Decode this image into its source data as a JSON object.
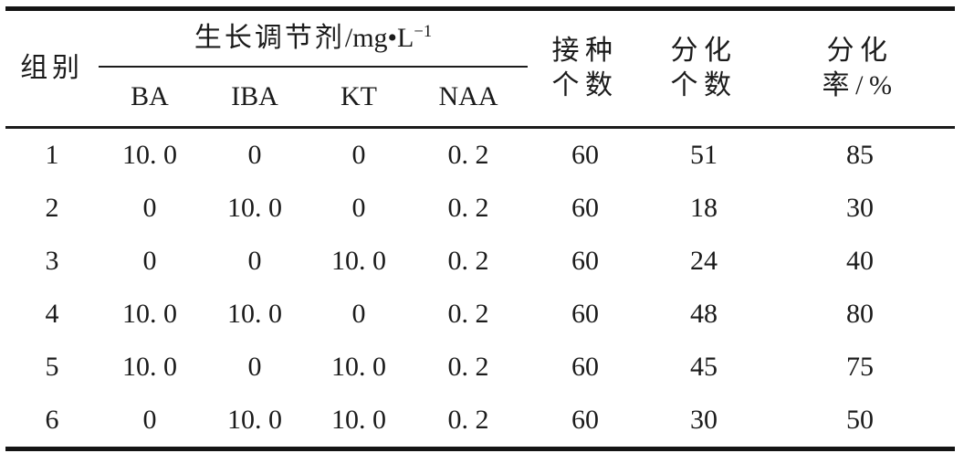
{
  "page": {
    "background": "#ffffff",
    "text_color": "#1b1b1b",
    "rule_color": "#141414"
  },
  "table": {
    "header": {
      "group": "组别",
      "regulator": {
        "title_cjk": "生长调节剂",
        "title_unit": "/mg•L",
        "title_sup": "−1",
        "sub_columns": [
          "BA",
          "IBA",
          "KT",
          "NAA"
        ]
      },
      "stat_columns": [
        {
          "line1": "接种",
          "line2": "个数"
        },
        {
          "line1": "分化",
          "line2": "个数"
        },
        {
          "line1": "分化",
          "line2": "率/%"
        }
      ]
    },
    "rows": [
      [
        "1",
        "10. 0",
        "0",
        "0",
        "0. 2",
        "60",
        "51",
        "85"
      ],
      [
        "2",
        "0",
        "10. 0",
        "0",
        "0. 2",
        "60",
        "18",
        "30"
      ],
      [
        "3",
        "0",
        "0",
        "10. 0",
        "0. 2",
        "60",
        "24",
        "40"
      ],
      [
        "4",
        "10. 0",
        "10. 0",
        "0",
        "0. 2",
        "60",
        "48",
        "80"
      ],
      [
        "5",
        "10. 0",
        "0",
        "10. 0",
        "0. 2",
        "60",
        "45",
        "75"
      ],
      [
        "6",
        "0",
        "10. 0",
        "10. 0",
        "0. 2",
        "60",
        "30",
        "50"
      ]
    ]
  },
  "chart_data": {
    "type": "table",
    "title": "",
    "column_group": {
      "label": "生长调节剂/mg•L⁻¹",
      "spans": [
        "BA",
        "IBA",
        "KT",
        "NAA"
      ]
    },
    "columns": [
      "组别",
      "BA",
      "IBA",
      "KT",
      "NAA",
      "接种个数",
      "分化个数",
      "分化率/%"
    ],
    "rows": [
      [
        1,
        10.0,
        0,
        0,
        0.2,
        60,
        51,
        85
      ],
      [
        2,
        0,
        10.0,
        0,
        0.2,
        60,
        18,
        30
      ],
      [
        3,
        0,
        0,
        10.0,
        0.2,
        60,
        24,
        40
      ],
      [
        4,
        10.0,
        10.0,
        0,
        0.2,
        60,
        48,
        80
      ],
      [
        5,
        10.0,
        0,
        10.0,
        0.2,
        60,
        45,
        75
      ],
      [
        6,
        0,
        10.0,
        10.0,
        0.2,
        60,
        30,
        50
      ]
    ]
  }
}
